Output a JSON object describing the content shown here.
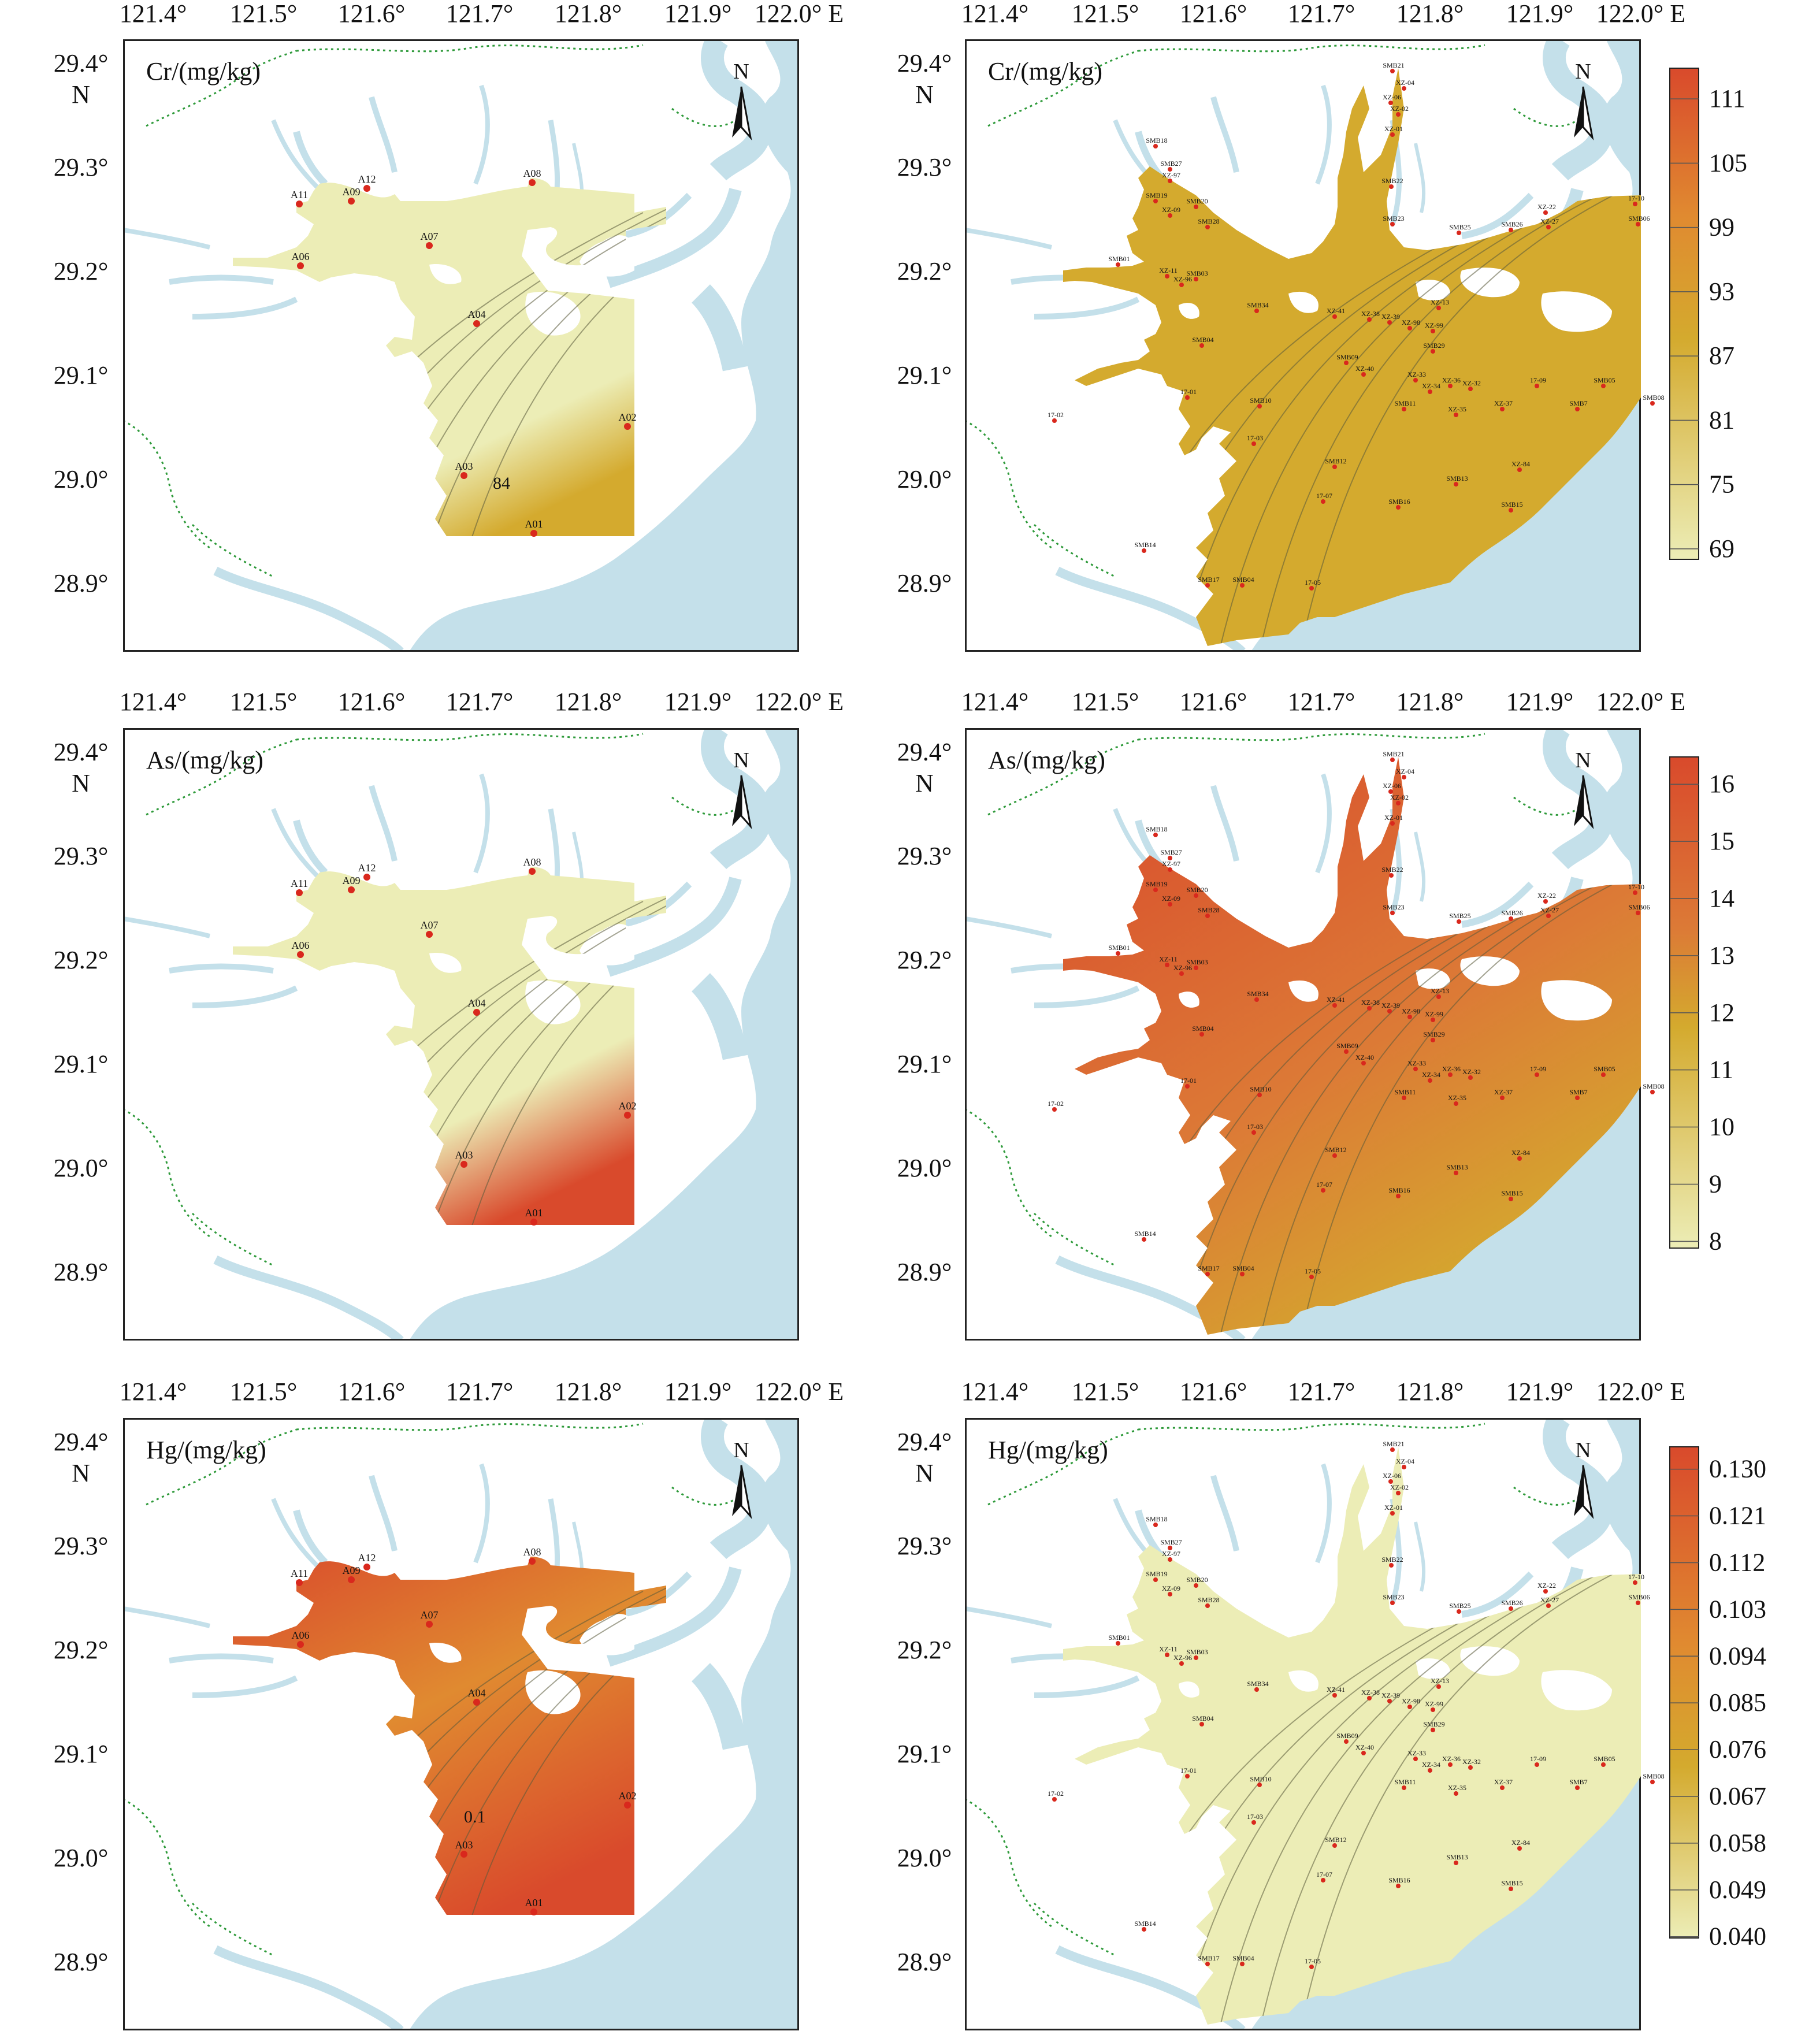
{
  "figure": {
    "lon_ticks": [
      "121.4°",
      "121.5°",
      "121.6°",
      "121.7°",
      "121.8°",
      "121.9°",
      "122.0° E"
    ],
    "lat_ticks": [
      "29.4°",
      "29.3°",
      "29.2°",
      "29.1°",
      "29.0°",
      "28.9°"
    ],
    "lat_hemisphere": "N",
    "north_arrow": "N",
    "colors": {
      "sea": "#c4e0ea",
      "land": "#ffffff",
      "frame": "#222222",
      "border_dotted": "#2e9a3a",
      "point": "#d9281d",
      "ramp_low": "#ecedb6",
      "ramp_mid": "#d4aa2e",
      "ramp_high": "#d94a2c"
    },
    "panels": [
      {
        "id": "cr-left",
        "label": "Cr/(mg/kg)",
        "contour_label": "84",
        "sites": [
          "A11",
          "A12",
          "A09",
          "A08",
          "A06",
          "A07",
          "A04",
          "A02",
          "A03",
          "A01"
        ]
      },
      {
        "id": "cr-right",
        "label": "Cr/(mg/kg)",
        "legend": [
          "111",
          "105",
          "99",
          "93",
          "87",
          "81",
          "75",
          "69"
        ],
        "sites": [
          "SMB21",
          "XZ-04",
          "XZ-06",
          "XZ-02",
          "XZ-01",
          "SMB18",
          "SMB27",
          "SMB22",
          "XZ-97",
          "SMB19",
          "XZ-09",
          "SMB20",
          "SMB28",
          "SMB23",
          "SMB25",
          "SMB26",
          "XZ-22",
          "XZ-27",
          "17-10",
          "SMB06",
          "SMB01",
          "XZ-11",
          "XZ-96",
          "SMB03",
          "SMB34",
          "XZ-41",
          "XZ-38",
          "XZ-39",
          "XZ-98",
          "XZ-99",
          "SMB29",
          "XZ-13",
          "SMB04",
          "SMB09",
          "XZ-40",
          "XZ-33",
          "XZ-34",
          "XZ-36",
          "XZ-32",
          "17-09",
          "SMB05",
          "17-01",
          "SMB10",
          "SMB11",
          "XZ-35",
          "XZ-37",
          "SMB7",
          "SMB08",
          "17-02",
          "17-03",
          "SMB12",
          "XZ-84",
          "SMB13",
          "17-07",
          "SMB16",
          "SMB15",
          "SMB14",
          "SMB17",
          "SMB04",
          "17-05"
        ]
      },
      {
        "id": "as-left",
        "label": "As/(mg/kg)",
        "sites": [
          "A11",
          "A12",
          "A09",
          "A08",
          "A06",
          "A07",
          "A04",
          "A02",
          "A03",
          "A01"
        ]
      },
      {
        "id": "as-right",
        "label": "As/(mg/kg)",
        "legend": [
          "16",
          "15",
          "14",
          "13",
          "12",
          "11",
          "10",
          "9",
          "8"
        ],
        "sites": [
          "SMB21",
          "XZ-04",
          "XZ-06",
          "XZ-02",
          "XZ-01",
          "SMB18",
          "SMB27",
          "SMB22",
          "XZ-97",
          "SMB19",
          "XZ-09",
          "SMB20",
          "SMB28",
          "SMB23",
          "SMB25",
          "SMB26",
          "XZ-22",
          "XZ-27",
          "17-10",
          "SMB06",
          "SMB01",
          "XZ-11",
          "XZ-96",
          "SMB03",
          "SMB34",
          "XZ-41",
          "XZ-38",
          "XZ-39",
          "XZ-98",
          "XZ-99",
          "SMB29",
          "XZ-13",
          "SMB04",
          "SMB09",
          "XZ-40",
          "XZ-33",
          "XZ-34",
          "XZ-36",
          "XZ-32",
          "17-09",
          "SMB05",
          "17-01",
          "SMB10",
          "SMB11",
          "XZ-35",
          "XZ-37",
          "SMB7",
          "SMB08",
          "17-02",
          "17-03",
          "SMB12",
          "XZ-84",
          "SMB13",
          "17-07",
          "SMB16",
          "SMB15",
          "SMB14",
          "SMB17",
          "SMB04",
          "17-05"
        ]
      },
      {
        "id": "hg-left",
        "label": "Hg/(mg/kg)",
        "contour_label": "0.1",
        "sites": [
          "A11",
          "A12",
          "A09",
          "A08",
          "A06",
          "A07",
          "A04",
          "A02",
          "A03",
          "A01"
        ]
      },
      {
        "id": "hg-right",
        "label": "Hg/(mg/kg)",
        "legend": [
          "0.130",
          "0.121",
          "0.112",
          "0.103",
          "0.094",
          "0.085",
          "0.076",
          "0.067",
          "0.058",
          "0.049",
          "0.040"
        ],
        "sites": [
          "SMB21",
          "XZ-04",
          "XZ-06",
          "XZ-02",
          "XZ-01",
          "SMB18",
          "SMB27",
          "SMB22",
          "XZ-97",
          "SMB19",
          "XZ-09",
          "SMB20",
          "SMB28",
          "SMB23",
          "SMB25",
          "SMB26",
          "XZ-22",
          "XZ-27",
          "17-10",
          "SMB06",
          "SMB01",
          "XZ-11",
          "XZ-96",
          "SMB03",
          "SMB34",
          "XZ-41",
          "XZ-38",
          "XZ-39",
          "XZ-98",
          "XZ-99",
          "SMB29",
          "XZ-13",
          "SMB04",
          "SMB09",
          "XZ-40",
          "XZ-33",
          "XZ-34",
          "XZ-36",
          "XZ-32",
          "17-09",
          "SMB05",
          "17-01",
          "SMB10",
          "SMB11",
          "XZ-35",
          "XZ-37",
          "SMB7",
          "SMB08",
          "17-02",
          "17-03",
          "SMB12",
          "XZ-84",
          "SMB13",
          "17-07",
          "SMB16",
          "SMB15",
          "SMB14",
          "SMB17",
          "SMB04",
          "17-05"
        ]
      }
    ]
  }
}
